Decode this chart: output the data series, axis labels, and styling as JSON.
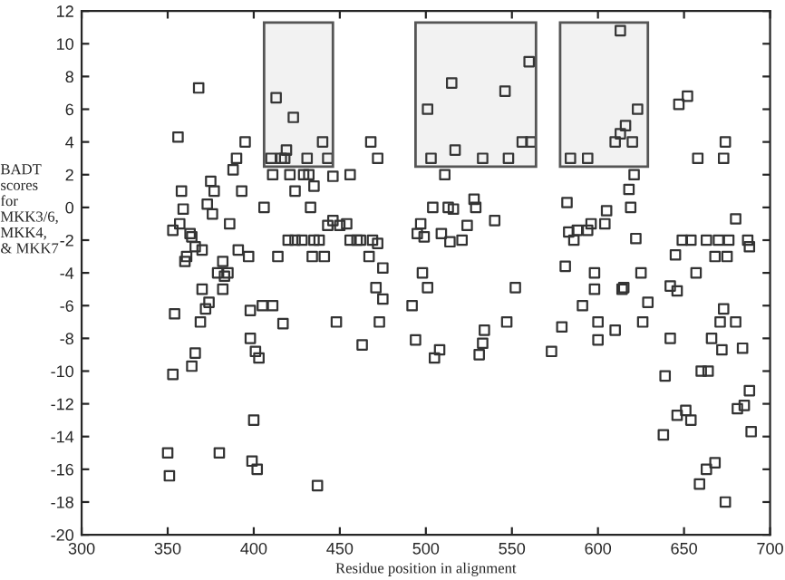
{
  "chart_data": {
    "type": "scatter",
    "xlabel": "Residue position in alignment",
    "ylabel": "BADT\nscores\nfor\nMKK3/6,\nMKK4,\n& MKK7",
    "x": [
      368,
      356,
      395,
      390,
      388,
      375,
      358,
      377,
      393,
      373,
      359,
      376,
      406,
      433,
      357,
      353,
      386,
      363,
      364,
      366,
      370,
      391,
      397,
      361,
      360,
      382,
      379,
      385,
      383,
      370,
      382,
      414,
      434,
      441,
      420,
      424,
      428,
      435,
      438,
      443,
      446,
      450,
      454,
      456,
      460,
      462,
      469,
      472,
      467,
      475,
      471,
      435,
      424,
      411,
      421,
      429,
      432,
      446,
      456,
      410,
      416,
      418,
      431,
      443,
      419,
      440,
      423,
      413,
      468,
      472,
      501,
      503,
      504,
      497,
      495,
      499,
      498,
      501,
      560,
      515,
      546,
      556,
      561,
      517,
      533,
      548,
      511,
      513,
      516,
      528,
      529,
      540,
      524,
      509,
      514,
      521,
      552,
      613,
      623,
      616,
      613,
      610,
      620,
      584,
      594,
      621,
      618,
      582,
      605,
      619,
      588,
      583,
      586,
      594,
      596,
      604,
      622,
      581,
      598,
      625,
      642,
      647,
      652,
      658,
      673,
      674,
      680,
      649,
      654,
      663,
      670,
      676,
      687,
      688,
      645,
      668,
      675,
      657,
      374,
      354,
      372,
      369,
      398,
      405,
      411,
      417,
      448,
      475,
      473,
      492,
      494,
      505,
      463,
      398,
      366,
      364,
      401,
      403,
      353,
      400,
      350,
      380,
      351,
      399,
      402,
      437,
      508,
      531,
      533,
      534,
      547,
      573,
      579,
      591,
      600,
      600,
      598,
      614,
      610,
      626,
      629,
      646,
      642,
      639,
      646,
      651,
      654,
      638,
      660,
      664,
      666,
      671,
      680,
      673,
      672,
      684,
      681,
      685,
      688,
      689,
      663,
      668,
      659,
      674,
      615
    ],
    "values": [
      7.3,
      4.3,
      4.0,
      3.0,
      2.3,
      1.6,
      1.0,
      1.0,
      1.0,
      0.2,
      -0.1,
      -0.4,
      0,
      0,
      -1.0,
      -1.4,
      -1.0,
      -1.6,
      -1.8,
      -2.4,
      -2.6,
      -2.6,
      -3.0,
      -3.0,
      -3.3,
      -3.3,
      -4.0,
      -4.0,
      -4.2,
      -5.0,
      -5.0,
      -3.0,
      -3.0,
      -3.0,
      -2.0,
      -2.0,
      -2.0,
      -2.0,
      -2.0,
      -1.1,
      -0.8,
      -1.1,
      -1.0,
      -2.0,
      -2.0,
      -2.0,
      -2.0,
      -2.2,
      -3.0,
      -3.7,
      -4.9,
      1.3,
      1.0,
      2.0,
      2.0,
      2.0,
      2.0,
      1.9,
      2.0,
      3.0,
      3.0,
      3.0,
      3.0,
      3.0,
      3.5,
      4.0,
      5.5,
      6.7,
      4.0,
      3.0,
      6.0,
      3.0,
      0,
      -1.0,
      -1.6,
      -1.8,
      -4.0,
      -4.9,
      8.9,
      7.6,
      7.1,
      4.0,
      4.0,
      3.5,
      3.0,
      3.0,
      2.0,
      0,
      -0.1,
      0.5,
      0,
      -0.8,
      -1.1,
      -1.6,
      -2.1,
      -2.0,
      -4.9,
      10.8,
      6.0,
      5.0,
      4.5,
      4.0,
      4.0,
      3.0,
      3.0,
      2.0,
      1.1,
      0.3,
      -0.2,
      0,
      -1.4,
      -1.5,
      -2.0,
      -1.4,
      -1.0,
      -1.0,
      -1.9,
      -3.6,
      -4.0,
      -4.0,
      -4.8,
      6.3,
      6.8,
      3.0,
      3.0,
      4.0,
      -0.7,
      -2.0,
      -2.0,
      -2.0,
      -2.0,
      -2.0,
      -2.0,
      -2.4,
      -2.9,
      -3.0,
      -3.0,
      -4.0,
      -5.8,
      -6.5,
      -6.2,
      -7.0,
      -6.3,
      -6.0,
      -6.0,
      -7.1,
      -7.0,
      -5.6,
      -7.0,
      -6.0,
      -8.1,
      -9.2,
      -8.4,
      -8.0,
      -8.9,
      -9.7,
      -8.8,
      -9.2,
      -10.2,
      -13.0,
      -15.0,
      -15.0,
      -16.4,
      -15.5,
      -16.0,
      -17.0,
      -8.7,
      -9.0,
      -8.3,
      -7.5,
      -7.0,
      -8.8,
      -7.3,
      -6.0,
      -7.0,
      -8.1,
      -5.0,
      -5.0,
      -7.5,
      -7.0,
      -5.8,
      -5.1,
      -8.0,
      -10.3,
      -12.7,
      -12.4,
      -13.0,
      -13.9,
      -10.0,
      -10.0,
      -8.0,
      -7.0,
      -7.0,
      -6.2,
      -8.7,
      -8.6,
      -12.3,
      -12.1,
      -11.2,
      -13.7,
      -16.0,
      -15.6,
      -16.9,
      -18.0,
      -4.9
    ],
    "color": "#333333",
    "marker": "square",
    "grid": false,
    "legend": false,
    "xlim": [
      300,
      700
    ],
    "xticks": [
      300,
      350,
      400,
      450,
      500,
      550,
      600,
      650,
      700
    ],
    "ylim": [
      -20,
      12
    ],
    "yticks": [
      -20,
      -18,
      -16,
      -14,
      -12,
      -10,
      -8,
      -6,
      -4,
      -2,
      0,
      2,
      4,
      6,
      8,
      10,
      12
    ],
    "bands": [
      {
        "axis": "x",
        "from": 406,
        "to": 446,
        "color": "#555555"
      },
      {
        "axis": "x",
        "from": 494,
        "to": 564,
        "color": "#555555"
      },
      {
        "axis": "x",
        "from": 578,
        "to": 629,
        "color": "#555555"
      }
    ]
  }
}
